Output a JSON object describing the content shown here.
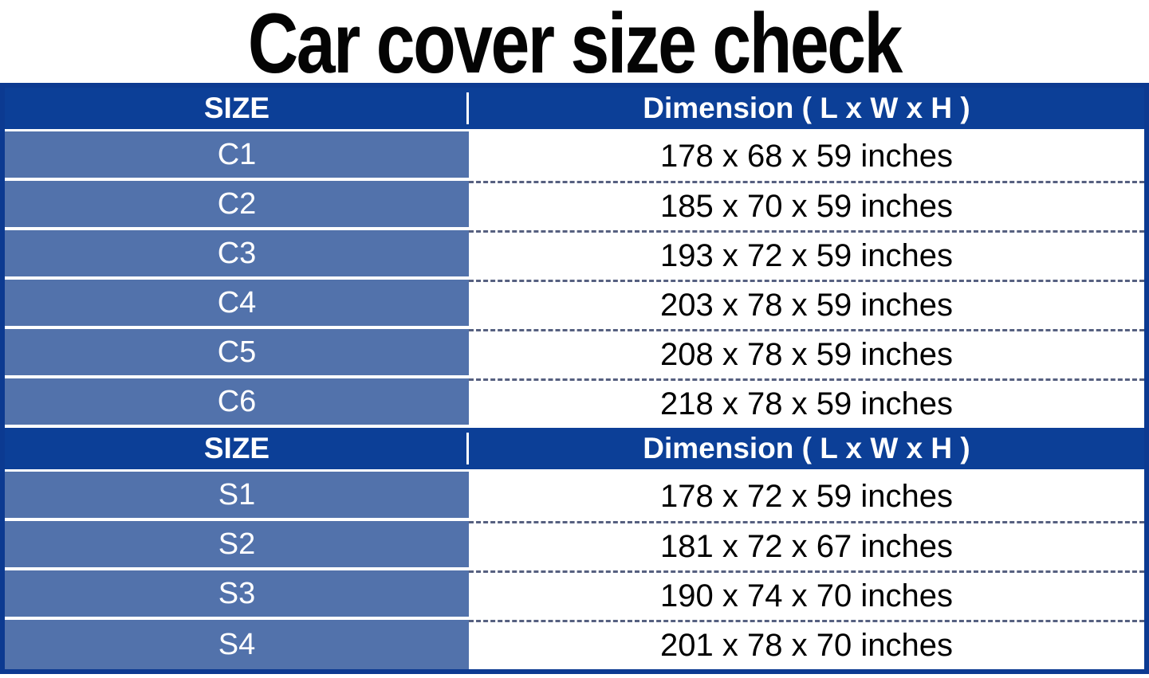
{
  "title": "Car cover size check",
  "colors": {
    "table_border": "#0C3A91",
    "header_bg": "#0C3F97",
    "size_cell_bg": "#5272AB",
    "header_text": "#FFFFFF",
    "size_cell_text": "#FFFFFF",
    "dimension_cell_text": "#000000",
    "dashed_separator": "#566080",
    "solid_separator": "#FFFFFF"
  },
  "sections": [
    {
      "header": {
        "size_label": "SIZE",
        "dimension_label": "Dimension ( L x W x H )"
      },
      "rows": [
        {
          "size": "C1",
          "dimension": "178 x 68 x 59 inches"
        },
        {
          "size": "C2",
          "dimension": "185 x 70 x 59 inches"
        },
        {
          "size": "C3",
          "dimension": "193 x 72 x 59 inches"
        },
        {
          "size": "C4",
          "dimension": "203 x 78 x 59 inches"
        },
        {
          "size": "C5",
          "dimension": "208 x 78 x 59 inches"
        },
        {
          "size": "C6",
          "dimension": "218 x 78 x 59 inches"
        }
      ]
    },
    {
      "header": {
        "size_label": "SIZE",
        "dimension_label": "Dimension ( L x W x H )"
      },
      "rows": [
        {
          "size": "S1",
          "dimension": "178 x 72 x 59 inches"
        },
        {
          "size": "S2",
          "dimension": "181 x 72 x 67 inches"
        },
        {
          "size": "S3",
          "dimension": "190 x 74 x 70 inches"
        },
        {
          "size": "S4",
          "dimension": "201 x 78 x 70 inches"
        }
      ]
    }
  ],
  "chart_data": [
    {
      "type": "table",
      "title": "Car cover size check",
      "columns": [
        "SIZE",
        "Dimension ( L x W x H )"
      ],
      "rows": [
        [
          "C1",
          "178 x 68 x 59 inches"
        ],
        [
          "C2",
          "185 x 70 x 59 inches"
        ],
        [
          "C3",
          "193 x 72 x 59 inches"
        ],
        [
          "C4",
          "203 x 78 x 59 inches"
        ],
        [
          "C5",
          "208 x 78 x 59 inches"
        ],
        [
          "C6",
          "218 x 78 x 59 inches"
        ]
      ]
    },
    {
      "type": "table",
      "columns": [
        "SIZE",
        "Dimension ( L x W x H )"
      ],
      "rows": [
        [
          "S1",
          "178 x 72 x 59 inches"
        ],
        [
          "S2",
          "181 x 72 x 67 inches"
        ],
        [
          "S3",
          "190 x 74 x 70 inches"
        ],
        [
          "S4",
          "201 x 78 x 70 inches"
        ]
      ]
    }
  ]
}
